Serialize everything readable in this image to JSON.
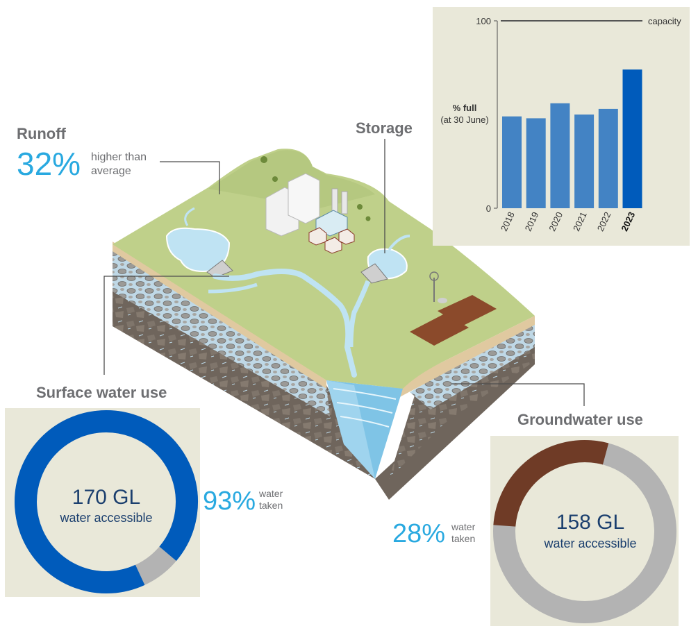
{
  "runoff": {
    "heading": "Runoff",
    "percent": "32%",
    "note_line1": "higher than",
    "note_line2": "average"
  },
  "storage": {
    "heading": "Storage"
  },
  "surface_water": {
    "heading": "Surface water use",
    "volume": "170 GL",
    "volume_label": "water accessible",
    "taken_percent": "93%",
    "taken_line1": "water",
    "taken_line2": "taken",
    "taken_fraction": 0.93,
    "color_taken": "#005bbb",
    "color_remaining": "#b3b3b3"
  },
  "groundwater": {
    "heading": "Groundwater use",
    "volume": "158 GL",
    "volume_label": "water accessible",
    "taken_percent": "28%",
    "taken_line1": "water",
    "taken_line2": "taken",
    "taken_fraction": 0.28,
    "color_taken": "#6f3b26",
    "color_remaining": "#b3b3b3"
  },
  "colors": {
    "panel_bg": "#e9e8d9",
    "accent_text": "#29a9e0",
    "bar": "#4383c4",
    "bar_highlight": "#005bbb"
  },
  "chart_data": {
    "type": "bar",
    "ylabel_line1": "% full",
    "ylabel_line2": "(at 30 June)",
    "ylim": [
      0,
      100
    ],
    "yticks": [
      "0",
      "100"
    ],
    "reference_line": {
      "value": 100,
      "label": "capacity"
    },
    "categories": [
      "2018",
      "2019",
      "2020",
      "2021",
      "2022",
      "2023"
    ],
    "values": [
      49,
      48,
      56,
      50,
      53,
      74
    ],
    "highlight": "2023",
    "grid": false
  }
}
